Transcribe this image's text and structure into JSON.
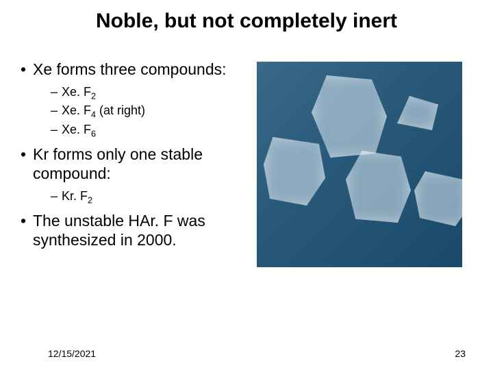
{
  "title": "Noble, but not completely inert",
  "bullets": {
    "b1": "Xe forms three compounds:",
    "b1_sub": {
      "s1_pre": "Xe. F",
      "s1_sub": "2",
      "s2_pre": "Xe. F",
      "s2_sub": "4",
      "s2_post": " (at right)",
      "s3_pre": "Xe. F",
      "s3_sub": "6"
    },
    "b2": "Kr forms only one stable compound:",
    "b2_sub": {
      "s1_pre": "Kr. F",
      "s1_sub": "2"
    },
    "b3": "The unstable HAr. F was synthesized in 2000."
  },
  "footer": {
    "date": "12/15/2021",
    "page": "23"
  },
  "image": {
    "description": "crystals-photo",
    "background_color": "#2a5a7a"
  }
}
